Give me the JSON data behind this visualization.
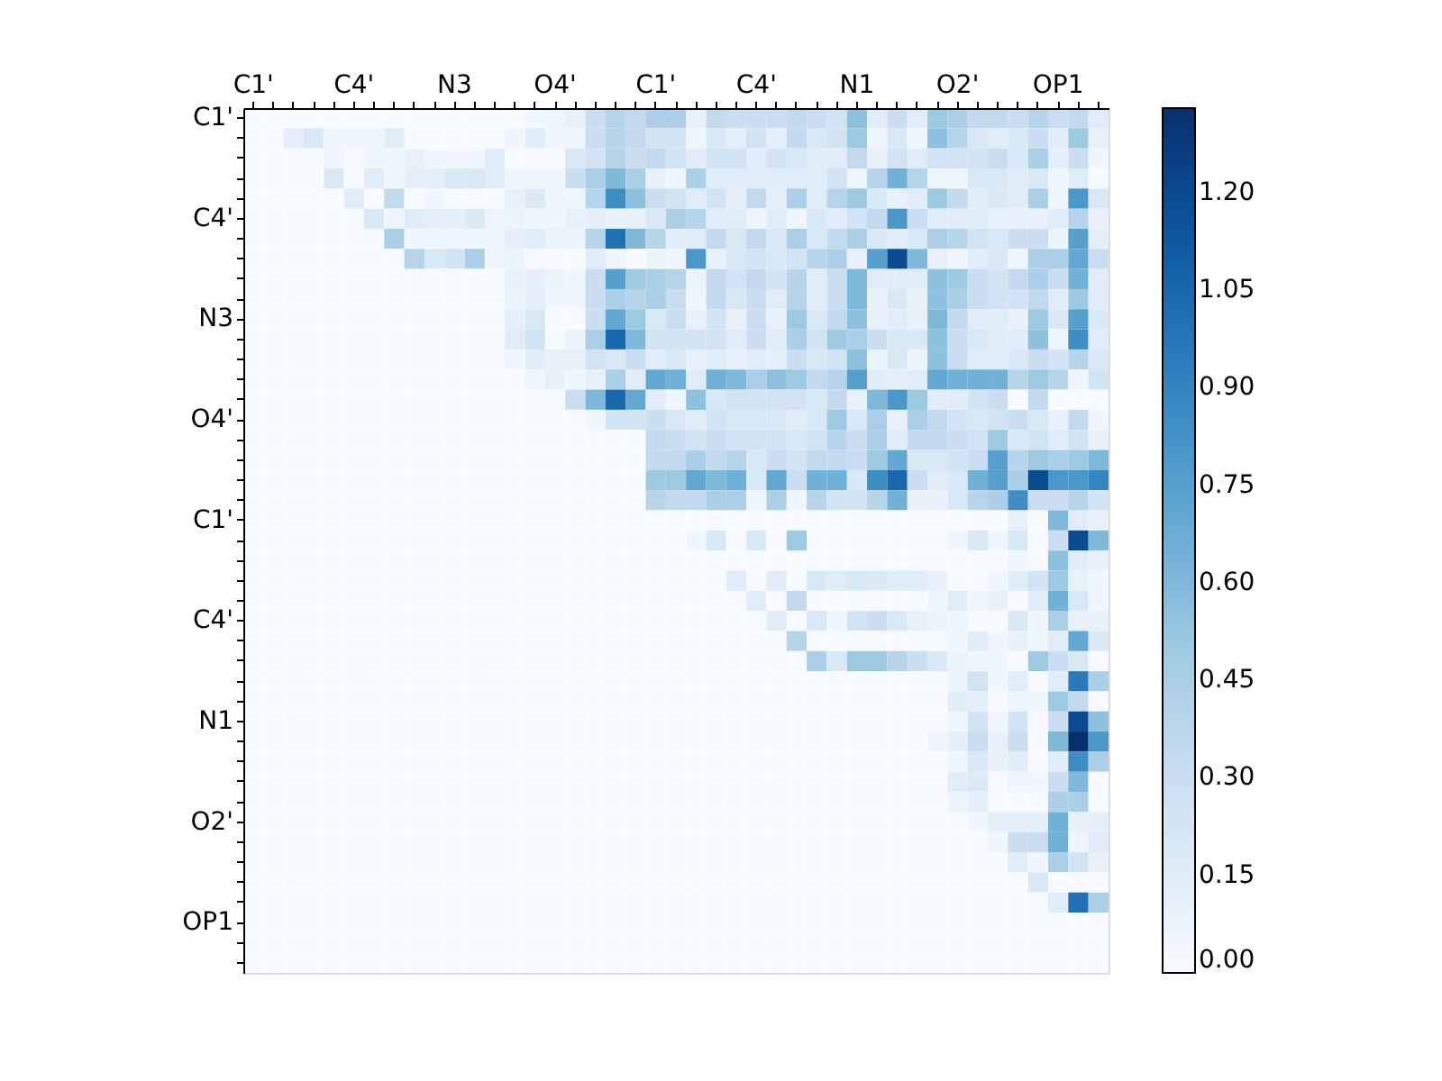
{
  "chart_data": {
    "type": "heatmap",
    "categories": [
      "C1'",
      null,
      null,
      null,
      null,
      "C4'",
      null,
      null,
      null,
      null,
      "N3",
      null,
      null,
      null,
      null,
      "O4'",
      null,
      null,
      null,
      null,
      "C1'",
      null,
      null,
      null,
      null,
      "C4'",
      null,
      null,
      null,
      null,
      "N1",
      null,
      null,
      null,
      null,
      "O2'",
      null,
      null,
      null,
      null,
      "OP1",
      null,
      null
    ],
    "y_categories": [
      "C1'",
      null,
      null,
      null,
      null,
      "C4'",
      null,
      null,
      null,
      null,
      "N3",
      null,
      null,
      null,
      null,
      "O4'",
      null,
      null,
      null,
      null,
      "C1'",
      null,
      null,
      null,
      null,
      "C4'",
      null,
      null,
      null,
      null,
      "N1",
      null,
      null,
      null,
      null,
      "O2'",
      null,
      null,
      null,
      null,
      "OP1",
      null,
      null
    ],
    "clim": [
      0,
      1.33
    ],
    "cticks": [
      {
        "value": 0,
        "label": "0.00"
      },
      {
        "value": 0.15,
        "label": "0.15"
      },
      {
        "value": 0.3,
        "label": "0.30"
      },
      {
        "value": 0.45,
        "label": "0.45"
      },
      {
        "value": 0.6,
        "label": "0.60"
      },
      {
        "value": 0.75,
        "label": "0.75"
      },
      {
        "value": 0.9,
        "label": "0.90"
      },
      {
        "value": 1.05,
        "label": "1.05"
      },
      {
        "value": 1.2,
        "label": "1.20"
      }
    ],
    "grid": false,
    "cells": [
      [
        0,
        0,
        0,
        0,
        0,
        0,
        0,
        0,
        0,
        0,
        0,
        0,
        0,
        0,
        0.05,
        0.05,
        0.1,
        0.3,
        0.4,
        0.35,
        0.45,
        0.45,
        0.1,
        0.35,
        0.3,
        0.3,
        0.3,
        0.35,
        0.3,
        0.25,
        0.55,
        0.15,
        0.3,
        0.15,
        0.5,
        0.45,
        0.35,
        0.35,
        0.3,
        0.4,
        0.3,
        0.35,
        0.15
      ],
      [
        0,
        0,
        0.12,
        0.2,
        0.05,
        0.05,
        0.05,
        0.15,
        0,
        0,
        0,
        0,
        0,
        0.05,
        0.15,
        0.05,
        0.05,
        0.3,
        0.4,
        0.35,
        0.25,
        0.25,
        0.05,
        0.2,
        0.12,
        0.25,
        0.12,
        0.35,
        0.2,
        0.25,
        0.5,
        0.05,
        0.2,
        0.05,
        0.55,
        0.4,
        0.2,
        0.15,
        0.2,
        0.3,
        0.15,
        0.5,
        0.1
      ],
      [
        0,
        0,
        0,
        0,
        0.05,
        0,
        0.05,
        0.05,
        0.1,
        0.05,
        0.05,
        0.05,
        0.15,
        0,
        0,
        0,
        0.2,
        0.25,
        0.4,
        0.3,
        0.35,
        0.25,
        0.15,
        0.25,
        0.25,
        0.15,
        0.25,
        0.2,
        0.15,
        0.15,
        0.35,
        0.1,
        0.25,
        0.15,
        0.25,
        0.25,
        0.25,
        0.3,
        0.2,
        0.45,
        0.12,
        0.3,
        0.05
      ],
      [
        0,
        0,
        0,
        0,
        0.2,
        0,
        0.15,
        0.05,
        0.12,
        0.12,
        0.2,
        0.2,
        0.15,
        0.05,
        0.05,
        0.05,
        0.3,
        0.45,
        0.6,
        0.45,
        0.1,
        0.05,
        0.45,
        0.15,
        0.15,
        0.15,
        0.15,
        0.15,
        0.15,
        0.25,
        0.05,
        0.4,
        0.65,
        0.4,
        0.05,
        0.05,
        0.2,
        0.2,
        0.15,
        0.2,
        0.05,
        0.15,
        0
      ],
      [
        0,
        0,
        0,
        0,
        0,
        0.15,
        0,
        0.35,
        0,
        0.05,
        0,
        0,
        0,
        0.1,
        0.18,
        0.05,
        0.05,
        0.4,
        0.85,
        0.55,
        0.3,
        0.25,
        0.15,
        0.25,
        0.12,
        0.35,
        0.12,
        0.45,
        0.15,
        0.4,
        0.5,
        0.2,
        0.1,
        0.15,
        0.5,
        0.35,
        0.15,
        0.2,
        0.15,
        0.45,
        0.05,
        0.8,
        0.2
      ],
      [
        0,
        0,
        0,
        0,
        0,
        0,
        0.2,
        0.05,
        0.15,
        0.12,
        0.12,
        0.18,
        0.07,
        0.08,
        0.05,
        0.05,
        0.1,
        0.12,
        0.1,
        0.1,
        0.2,
        0.45,
        0.4,
        0.15,
        0.15,
        0.05,
        0.15,
        0.05,
        0.2,
        0.15,
        0.25,
        0.35,
        0.8,
        0.3,
        0.15,
        0.15,
        0.15,
        0.1,
        0.1,
        0.1,
        0.15,
        0.4,
        0.1
      ],
      [
        0,
        0,
        0,
        0,
        0,
        0,
        0,
        0.45,
        0.05,
        0.05,
        0.05,
        0.05,
        0.05,
        0.12,
        0.15,
        0.08,
        0.08,
        0.4,
        1.0,
        0.6,
        0.4,
        0.15,
        0.15,
        0.35,
        0.2,
        0.35,
        0.2,
        0.45,
        0.2,
        0.35,
        0.45,
        0.2,
        0.15,
        0.2,
        0.45,
        0.4,
        0.25,
        0.2,
        0.3,
        0.3,
        0.08,
        0.75,
        0.12
      ],
      [
        0,
        0,
        0,
        0,
        0,
        0,
        0,
        0,
        0.4,
        0.2,
        0.25,
        0.45,
        0.05,
        0.08,
        0,
        0,
        0,
        0.15,
        0.05,
        0,
        0.08,
        0.05,
        0.8,
        0.1,
        0.2,
        0.25,
        0.2,
        0.25,
        0.4,
        0.45,
        0.1,
        0.75,
        1.2,
        0.6,
        0.1,
        0.05,
        0.15,
        0.2,
        0.05,
        0.45,
        0.45,
        0.7,
        0.3
      ],
      [
        0,
        0,
        0,
        0,
        0,
        0,
        0,
        0,
        0,
        0,
        0,
        0,
        0,
        0.1,
        0.12,
        0.08,
        0.05,
        0.3,
        0.75,
        0.5,
        0.45,
        0.4,
        0.08,
        0.35,
        0.25,
        0.35,
        0.25,
        0.4,
        0.15,
        0.3,
        0.6,
        0.15,
        0.15,
        0.15,
        0.55,
        0.5,
        0.3,
        0.25,
        0.35,
        0.45,
        0.3,
        0.65,
        0.15
      ],
      [
        0,
        0,
        0,
        0,
        0,
        0,
        0,
        0,
        0,
        0,
        0,
        0,
        0,
        0.08,
        0.12,
        0.05,
        0.05,
        0.3,
        0.45,
        0.4,
        0.45,
        0.3,
        0.05,
        0.35,
        0.2,
        0.3,
        0.15,
        0.4,
        0.15,
        0.3,
        0.6,
        0.1,
        0.2,
        0.1,
        0.55,
        0.45,
        0.3,
        0.25,
        0.25,
        0.35,
        0.15,
        0.5,
        0.15
      ],
      [
        0,
        0,
        0,
        0,
        0,
        0,
        0,
        0,
        0,
        0,
        0,
        0,
        0,
        0.12,
        0.2,
        0,
        0,
        0.3,
        0.7,
        0.5,
        0.2,
        0.3,
        0.1,
        0.25,
        0.1,
        0.3,
        0.1,
        0.5,
        0.2,
        0.35,
        0.55,
        0.1,
        0.15,
        0.1,
        0.6,
        0.35,
        0.15,
        0.15,
        0.1,
        0.5,
        0.2,
        0.75,
        0.2
      ],
      [
        0,
        0,
        0,
        0,
        0,
        0,
        0,
        0,
        0,
        0,
        0,
        0,
        0,
        0.15,
        0.25,
        0,
        0.08,
        0.45,
        1.05,
        0.6,
        0.25,
        0.25,
        0.25,
        0.25,
        0.15,
        0.3,
        0.15,
        0.45,
        0.25,
        0.5,
        0.45,
        0.3,
        0.2,
        0.2,
        0.55,
        0.3,
        0.2,
        0.15,
        0.15,
        0.55,
        0.05,
        0.85,
        0.15
      ],
      [
        0,
        0,
        0,
        0,
        0,
        0,
        0,
        0,
        0,
        0,
        0,
        0,
        0,
        0.05,
        0.15,
        0.1,
        0.1,
        0.25,
        0.2,
        0.3,
        0.15,
        0.2,
        0.1,
        0.15,
        0.1,
        0.15,
        0.12,
        0.3,
        0.2,
        0.25,
        0.55,
        0.08,
        0.2,
        0.08,
        0.55,
        0.3,
        0.15,
        0.15,
        0.2,
        0.3,
        0.25,
        0.4,
        0.2
      ],
      [
        0,
        0,
        0,
        0,
        0,
        0,
        0,
        0,
        0,
        0,
        0,
        0,
        0,
        0,
        0.05,
        0.1,
        0.05,
        0.1,
        0.45,
        0.15,
        0.7,
        0.65,
        0.15,
        0.65,
        0.6,
        0.45,
        0.55,
        0.5,
        0.35,
        0.4,
        0.75,
        0.15,
        0.12,
        0.15,
        0.7,
        0.65,
        0.65,
        0.65,
        0.4,
        0.5,
        0.4,
        0.05,
        0.25
      ],
      [
        0,
        0,
        0,
        0,
        0,
        0,
        0,
        0,
        0,
        0,
        0,
        0,
        0,
        0,
        0,
        0,
        0.3,
        0.6,
        1.05,
        0.7,
        0.15,
        0.05,
        0.55,
        0.2,
        0.25,
        0.25,
        0.25,
        0.25,
        0.2,
        0.35,
        0.1,
        0.6,
        0.8,
        0.5,
        0.15,
        0.15,
        0.25,
        0.3,
        0,
        0.35,
        0,
        0,
        0
      ],
      [
        0,
        0,
        0,
        0,
        0,
        0,
        0,
        0,
        0,
        0,
        0,
        0,
        0,
        0,
        0,
        0,
        0,
        0.05,
        0.25,
        0.25,
        0.3,
        0.2,
        0.15,
        0.25,
        0.2,
        0.2,
        0.2,
        0.15,
        0.2,
        0.5,
        0.2,
        0.45,
        0.1,
        0.45,
        0.35,
        0.25,
        0.2,
        0.25,
        0.3,
        0.2,
        0.1,
        0.35,
        0.05
      ],
      [
        0,
        0,
        0,
        0,
        0,
        0,
        0,
        0,
        0,
        0,
        0,
        0,
        0,
        0,
        0,
        0,
        0,
        0,
        0,
        0,
        0.35,
        0.3,
        0.25,
        0.3,
        0.25,
        0.25,
        0.25,
        0.2,
        0.25,
        0.4,
        0.3,
        0.45,
        0.15,
        0.35,
        0.35,
        0.3,
        0.25,
        0.5,
        0.2,
        0.25,
        0.15,
        0.25,
        0.1
      ],
      [
        0,
        0,
        0,
        0,
        0,
        0,
        0,
        0,
        0,
        0,
        0,
        0,
        0,
        0,
        0,
        0,
        0,
        0,
        0,
        0,
        0.35,
        0.35,
        0.45,
        0.35,
        0.4,
        0.2,
        0.3,
        0.25,
        0.35,
        0.35,
        0.3,
        0.5,
        0.7,
        0.2,
        0.2,
        0.25,
        0.3,
        0.75,
        0.4,
        0.5,
        0.45,
        0.5,
        0.6
      ],
      [
        0,
        0,
        0,
        0,
        0,
        0,
        0,
        0,
        0,
        0,
        0,
        0,
        0,
        0,
        0,
        0,
        0,
        0,
        0,
        0,
        0.5,
        0.5,
        0.7,
        0.6,
        0.65,
        0.2,
        0.7,
        0.3,
        0.65,
        0.65,
        0.2,
        0.85,
        1.05,
        0.3,
        0.15,
        0.2,
        0.65,
        0.75,
        0.45,
        1.2,
        0.8,
        0.8,
        0.9
      ],
      [
        0,
        0,
        0,
        0,
        0,
        0,
        0,
        0,
        0,
        0,
        0,
        0,
        0,
        0,
        0,
        0,
        0,
        0,
        0,
        0,
        0.4,
        0.35,
        0.35,
        0.45,
        0.45,
        0.05,
        0.45,
        0.05,
        0.4,
        0.25,
        0.25,
        0.4,
        0.65,
        0.1,
        0.1,
        0.2,
        0.4,
        0.45,
        0.85,
        0.3,
        0.3,
        0.4,
        0.25
      ],
      [
        0,
        0,
        0,
        0,
        0,
        0,
        0,
        0,
        0,
        0,
        0,
        0,
        0,
        0,
        0,
        0,
        0,
        0,
        0,
        0,
        0,
        0,
        0,
        0,
        0,
        0,
        0,
        0,
        0,
        0,
        0,
        0,
        0,
        0,
        0,
        0,
        0,
        0,
        0.1,
        0,
        0.6,
        0.15,
        0.1
      ],
      [
        0,
        0,
        0,
        0,
        0,
        0,
        0,
        0,
        0,
        0,
        0,
        0,
        0,
        0,
        0,
        0,
        0,
        0,
        0,
        0,
        0,
        0,
        0.05,
        0.2,
        0,
        0.2,
        0,
        0.5,
        0,
        0,
        0,
        0,
        0,
        0,
        0,
        0.05,
        0.2,
        0.05,
        0.2,
        0,
        0.3,
        1.2,
        0.6
      ],
      [
        0,
        0,
        0,
        0,
        0,
        0,
        0,
        0,
        0,
        0,
        0,
        0,
        0,
        0,
        0,
        0,
        0,
        0,
        0,
        0,
        0,
        0,
        0,
        0,
        0,
        0,
        0,
        0,
        0,
        0,
        0,
        0,
        0,
        0,
        0,
        0,
        0,
        0,
        0.05,
        0,
        0.55,
        0.15,
        0.1
      ],
      [
        0,
        0,
        0,
        0,
        0,
        0,
        0,
        0,
        0,
        0,
        0,
        0,
        0,
        0,
        0,
        0,
        0,
        0,
        0,
        0,
        0,
        0,
        0,
        0,
        0.15,
        0,
        0.15,
        0,
        0.2,
        0.15,
        0.2,
        0.18,
        0.15,
        0.15,
        0.1,
        0,
        0,
        0.05,
        0.15,
        0.25,
        0.5,
        0.1,
        0.05
      ],
      [
        0,
        0,
        0,
        0,
        0,
        0,
        0,
        0,
        0,
        0,
        0,
        0,
        0,
        0,
        0,
        0,
        0,
        0,
        0,
        0,
        0,
        0,
        0,
        0,
        0,
        0.15,
        0,
        0.35,
        0,
        0,
        0,
        0,
        0,
        0,
        0.05,
        0.15,
        0.05,
        0.1,
        0,
        0.15,
        0.65,
        0.2,
        0.05
      ],
      [
        0,
        0,
        0,
        0,
        0,
        0,
        0,
        0,
        0,
        0,
        0,
        0,
        0,
        0,
        0,
        0,
        0,
        0,
        0,
        0,
        0,
        0,
        0,
        0,
        0,
        0,
        0.15,
        0,
        0.2,
        0.05,
        0.25,
        0.3,
        0.2,
        0.1,
        0.08,
        0.05,
        0,
        0,
        0.2,
        0.05,
        0.45,
        0.1,
        0.1
      ],
      [
        0,
        0,
        0,
        0,
        0,
        0,
        0,
        0,
        0,
        0,
        0,
        0,
        0,
        0,
        0,
        0,
        0,
        0,
        0,
        0,
        0,
        0,
        0,
        0,
        0,
        0,
        0,
        0.4,
        0,
        0,
        0,
        0,
        0,
        0,
        0,
        0.05,
        0.15,
        0.05,
        0.1,
        0.05,
        0.15,
        0.7,
        0.2
      ],
      [
        0,
        0,
        0,
        0,
        0,
        0,
        0,
        0,
        0,
        0,
        0,
        0,
        0,
        0,
        0,
        0,
        0,
        0,
        0,
        0,
        0,
        0,
        0,
        0,
        0,
        0,
        0,
        0,
        0.45,
        0.2,
        0.5,
        0.5,
        0.4,
        0.3,
        0.2,
        0.08,
        0.05,
        0.05,
        0,
        0.5,
        0.3,
        0.2,
        0
      ],
      [
        0,
        0,
        0,
        0,
        0,
        0,
        0,
        0,
        0,
        0,
        0,
        0,
        0,
        0,
        0,
        0,
        0,
        0,
        0,
        0,
        0,
        0,
        0,
        0,
        0,
        0,
        0,
        0,
        0,
        0,
        0,
        0,
        0,
        0,
        0,
        0.08,
        0.25,
        0.05,
        0.15,
        0,
        0.15,
        0.95,
        0.45
      ],
      [
        0,
        0,
        0,
        0,
        0,
        0,
        0,
        0,
        0,
        0,
        0,
        0,
        0,
        0,
        0,
        0,
        0,
        0,
        0,
        0,
        0,
        0,
        0,
        0,
        0,
        0,
        0,
        0,
        0,
        0,
        0,
        0,
        0,
        0,
        0,
        0.15,
        0.12,
        0,
        0.05,
        0.05,
        0.5,
        0.35,
        0
      ],
      [
        0,
        0,
        0,
        0,
        0,
        0,
        0,
        0,
        0,
        0,
        0,
        0,
        0,
        0,
        0,
        0,
        0,
        0,
        0,
        0,
        0,
        0,
        0,
        0,
        0,
        0,
        0,
        0,
        0,
        0,
        0,
        0,
        0,
        0,
        0,
        0.05,
        0.25,
        0.05,
        0.25,
        0,
        0.3,
        1.2,
        0.55
      ],
      [
        0,
        0,
        0,
        0,
        0,
        0,
        0,
        0,
        0,
        0,
        0,
        0,
        0,
        0,
        0,
        0,
        0,
        0,
        0,
        0,
        0,
        0,
        0,
        0,
        0,
        0,
        0,
        0,
        0,
        0,
        0,
        0,
        0,
        0,
        0.05,
        0.12,
        0.3,
        0.1,
        0.3,
        0,
        0.6,
        1.33,
        0.8
      ],
      [
        0,
        0,
        0,
        0,
        0,
        0,
        0,
        0,
        0,
        0,
        0,
        0,
        0,
        0,
        0,
        0,
        0,
        0,
        0,
        0,
        0,
        0,
        0,
        0,
        0,
        0,
        0,
        0,
        0,
        0,
        0,
        0,
        0,
        0,
        0,
        0.05,
        0.2,
        0.1,
        0.15,
        0,
        0.15,
        0.85,
        0.45
      ],
      [
        0,
        0,
        0,
        0,
        0,
        0,
        0,
        0,
        0,
        0,
        0,
        0,
        0,
        0,
        0,
        0,
        0,
        0,
        0,
        0,
        0,
        0,
        0,
        0,
        0,
        0,
        0,
        0,
        0,
        0,
        0,
        0,
        0,
        0,
        0,
        0.15,
        0.18,
        0,
        0.05,
        0.05,
        0.3,
        0.6,
        0
      ],
      [
        0,
        0,
        0,
        0,
        0,
        0,
        0,
        0,
        0,
        0,
        0,
        0,
        0,
        0,
        0,
        0,
        0,
        0,
        0,
        0,
        0,
        0,
        0,
        0,
        0,
        0,
        0,
        0,
        0,
        0,
        0,
        0,
        0,
        0,
        0,
        0.08,
        0.12,
        0,
        0,
        0,
        0.45,
        0.45,
        0
      ],
      [
        0,
        0,
        0,
        0,
        0,
        0,
        0,
        0,
        0,
        0,
        0,
        0,
        0,
        0,
        0,
        0,
        0,
        0,
        0,
        0,
        0,
        0,
        0,
        0,
        0,
        0,
        0,
        0,
        0,
        0,
        0,
        0,
        0,
        0,
        0,
        0,
        0.05,
        0.12,
        0.12,
        0.12,
        0.65,
        0.1,
        0.12
      ],
      [
        0,
        0,
        0,
        0,
        0,
        0,
        0,
        0,
        0,
        0,
        0,
        0,
        0,
        0,
        0,
        0,
        0,
        0,
        0,
        0,
        0,
        0,
        0,
        0,
        0,
        0,
        0,
        0,
        0,
        0,
        0,
        0,
        0,
        0,
        0,
        0,
        0,
        0.05,
        0.3,
        0.3,
        0.65,
        0.05,
        0.15
      ],
      [
        0,
        0,
        0,
        0,
        0,
        0,
        0,
        0,
        0,
        0,
        0,
        0,
        0,
        0,
        0,
        0,
        0,
        0,
        0,
        0,
        0,
        0,
        0,
        0,
        0,
        0,
        0,
        0,
        0,
        0,
        0,
        0,
        0,
        0,
        0,
        0,
        0,
        0,
        0.15,
        0.05,
        0.45,
        0.25,
        0.1
      ],
      [
        0,
        0,
        0,
        0,
        0,
        0,
        0,
        0,
        0,
        0,
        0,
        0,
        0,
        0,
        0,
        0,
        0,
        0,
        0,
        0,
        0,
        0,
        0,
        0,
        0,
        0,
        0,
        0,
        0,
        0,
        0,
        0,
        0,
        0,
        0,
        0,
        0,
        0,
        0,
        0.2,
        0,
        0,
        0
      ],
      [
        0,
        0,
        0,
        0,
        0,
        0,
        0,
        0,
        0,
        0,
        0,
        0,
        0,
        0,
        0,
        0,
        0,
        0,
        0,
        0,
        0,
        0,
        0,
        0,
        0,
        0,
        0,
        0,
        0,
        0,
        0,
        0,
        0,
        0,
        0,
        0,
        0,
        0,
        0,
        0,
        0.15,
        1.0,
        0.45
      ],
      [
        0,
        0,
        0,
        0,
        0,
        0,
        0,
        0,
        0,
        0,
        0,
        0,
        0,
        0,
        0,
        0,
        0,
        0,
        0,
        0,
        0,
        0,
        0,
        0,
        0,
        0,
        0,
        0,
        0,
        0,
        0,
        0,
        0,
        0,
        0,
        0,
        0,
        0,
        0,
        0,
        0,
        0,
        0
      ],
      [
        0,
        0,
        0,
        0,
        0,
        0,
        0,
        0,
        0,
        0,
        0,
        0,
        0,
        0,
        0,
        0,
        0,
        0,
        0,
        0,
        0,
        0,
        0,
        0,
        0,
        0,
        0,
        0,
        0,
        0,
        0,
        0,
        0,
        0,
        0,
        0,
        0,
        0,
        0,
        0,
        0,
        0,
        0
      ],
      [
        0,
        0,
        0,
        0,
        0,
        0,
        0,
        0,
        0,
        0,
        0,
        0,
        0,
        0,
        0,
        0,
        0,
        0,
        0,
        0,
        0,
        0,
        0,
        0,
        0,
        0,
        0,
        0,
        0,
        0,
        0,
        0,
        0,
        0,
        0,
        0,
        0,
        0,
        0,
        0,
        0,
        0,
        0
      ]
    ]
  }
}
